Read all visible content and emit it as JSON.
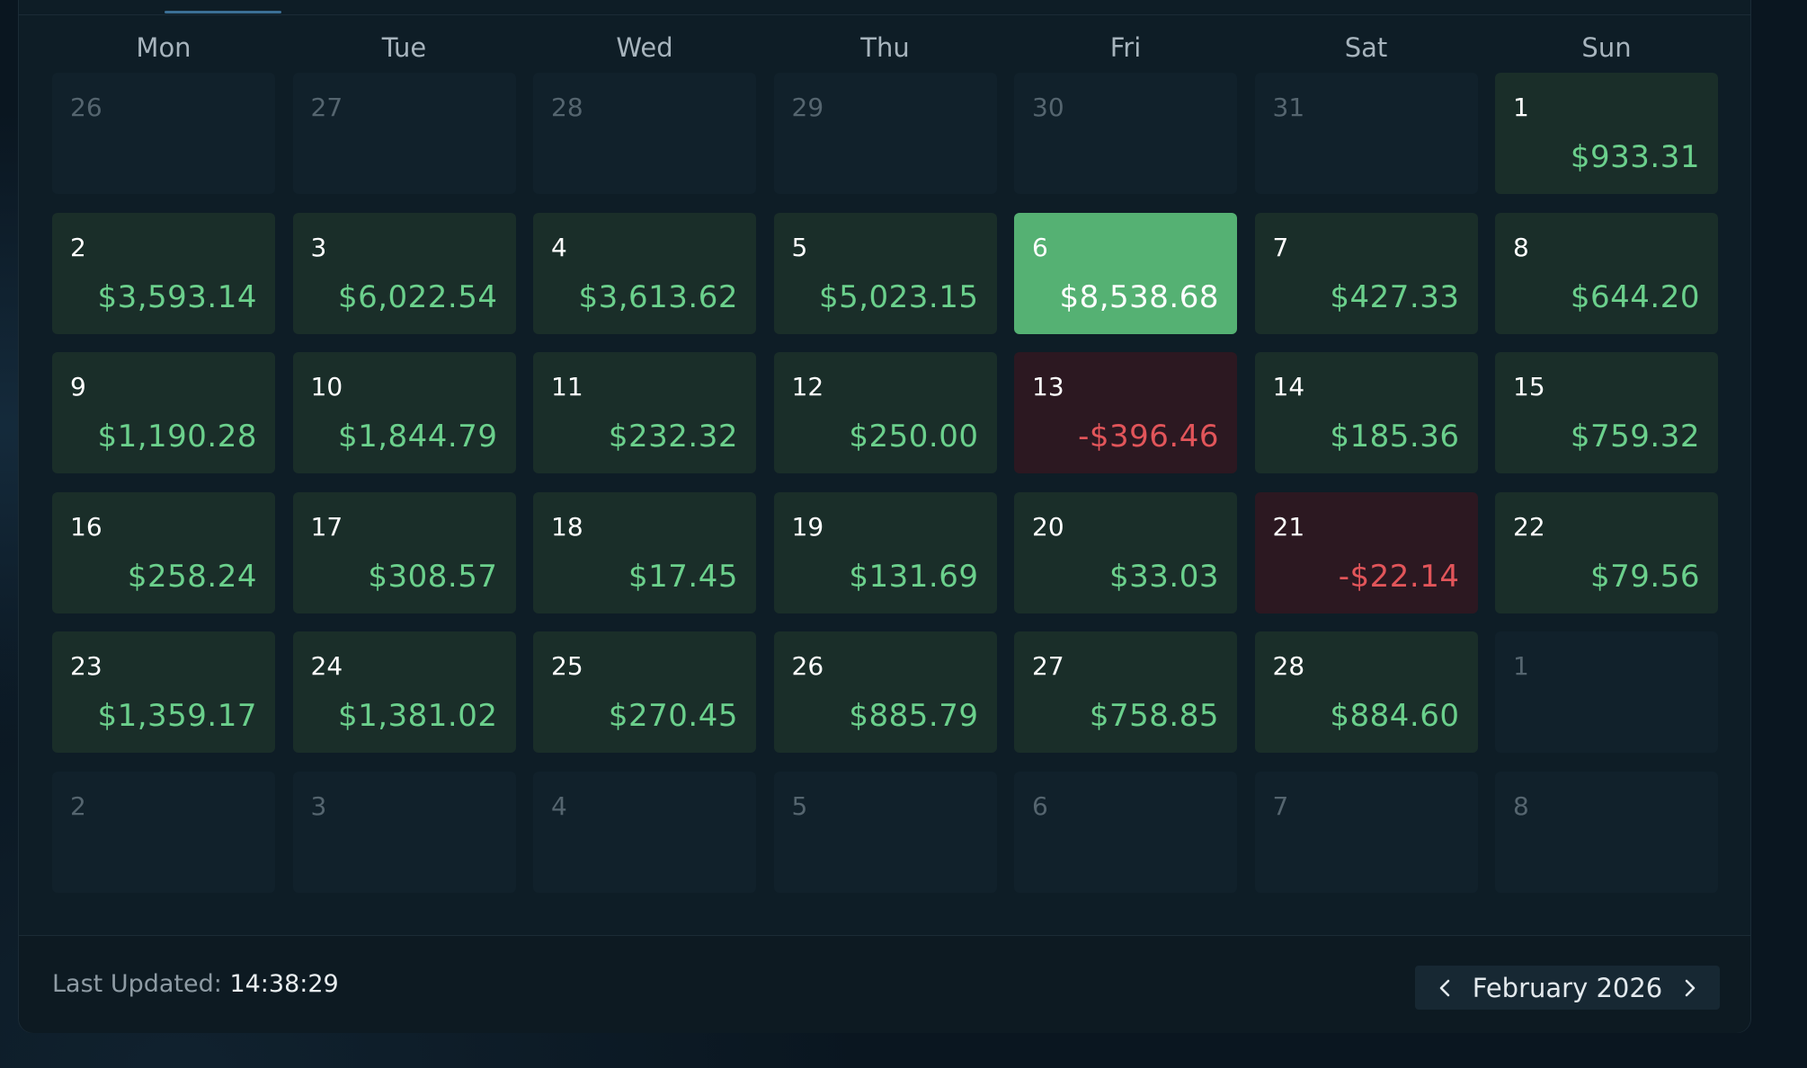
{
  "weekdays": [
    "Mon",
    "Tue",
    "Wed",
    "Thu",
    "Fri",
    "Sat",
    "Sun"
  ],
  "weeks": [
    [
      {
        "day": "26",
        "amount": "",
        "state": "muted"
      },
      {
        "day": "27",
        "amount": "",
        "state": "muted"
      },
      {
        "day": "28",
        "amount": "",
        "state": "muted"
      },
      {
        "day": "29",
        "amount": "",
        "state": "muted"
      },
      {
        "day": "30",
        "amount": "",
        "state": "muted"
      },
      {
        "day": "31",
        "amount": "",
        "state": "muted"
      },
      {
        "day": "1",
        "amount": "$933.31",
        "state": "pos"
      }
    ],
    [
      {
        "day": "2",
        "amount": "$3,593.14",
        "state": "pos"
      },
      {
        "day": "3",
        "amount": "$6,022.54",
        "state": "pos"
      },
      {
        "day": "4",
        "amount": "$3,613.62",
        "state": "pos"
      },
      {
        "day": "5",
        "amount": "$5,023.15",
        "state": "pos"
      },
      {
        "day": "6",
        "amount": "$8,538.68",
        "state": "best"
      },
      {
        "day": "7",
        "amount": "$427.33",
        "state": "pos"
      },
      {
        "day": "8",
        "amount": "$644.20",
        "state": "pos"
      }
    ],
    [
      {
        "day": "9",
        "amount": "$1,190.28",
        "state": "pos"
      },
      {
        "day": "10",
        "amount": "$1,844.79",
        "state": "pos"
      },
      {
        "day": "11",
        "amount": "$232.32",
        "state": "pos"
      },
      {
        "day": "12",
        "amount": "$250.00",
        "state": "pos"
      },
      {
        "day": "13",
        "amount": "-$396.46",
        "state": "neg"
      },
      {
        "day": "14",
        "amount": "$185.36",
        "state": "pos"
      },
      {
        "day": "15",
        "amount": "$759.32",
        "state": "pos"
      }
    ],
    [
      {
        "day": "16",
        "amount": "$258.24",
        "state": "pos"
      },
      {
        "day": "17",
        "amount": "$308.57",
        "state": "pos"
      },
      {
        "day": "18",
        "amount": "$17.45",
        "state": "pos"
      },
      {
        "day": "19",
        "amount": "$131.69",
        "state": "pos"
      },
      {
        "day": "20",
        "amount": "$33.03",
        "state": "pos"
      },
      {
        "day": "21",
        "amount": "-$22.14",
        "state": "neg"
      },
      {
        "day": "22",
        "amount": "$79.56",
        "state": "pos"
      }
    ],
    [
      {
        "day": "23",
        "amount": "$1,359.17",
        "state": "pos"
      },
      {
        "day": "24",
        "amount": "$1,381.02",
        "state": "pos"
      },
      {
        "day": "25",
        "amount": "$270.45",
        "state": "pos"
      },
      {
        "day": "26",
        "amount": "$885.79",
        "state": "pos"
      },
      {
        "day": "27",
        "amount": "$758.85",
        "state": "pos"
      },
      {
        "day": "28",
        "amount": "$884.60",
        "state": "pos"
      },
      {
        "day": "1",
        "amount": "",
        "state": "muted"
      }
    ],
    [
      {
        "day": "2",
        "amount": "",
        "state": "muted"
      },
      {
        "day": "3",
        "amount": "",
        "state": "muted"
      },
      {
        "day": "4",
        "amount": "",
        "state": "muted"
      },
      {
        "day": "5",
        "amount": "",
        "state": "muted"
      },
      {
        "day": "6",
        "amount": "",
        "state": "muted"
      },
      {
        "day": "7",
        "amount": "",
        "state": "muted"
      },
      {
        "day": "8",
        "amount": "",
        "state": "muted"
      }
    ]
  ],
  "footer": {
    "last_updated_label": "Last Updated:",
    "last_updated_time": "14:38:29",
    "month_label": "February 2026",
    "prev_icon": "chevron-left-icon",
    "next_icon": "chevron-right-icon"
  },
  "colors": {
    "positive": "#6bd08c",
    "negative": "#e2555a",
    "best_day": "#55b173"
  }
}
